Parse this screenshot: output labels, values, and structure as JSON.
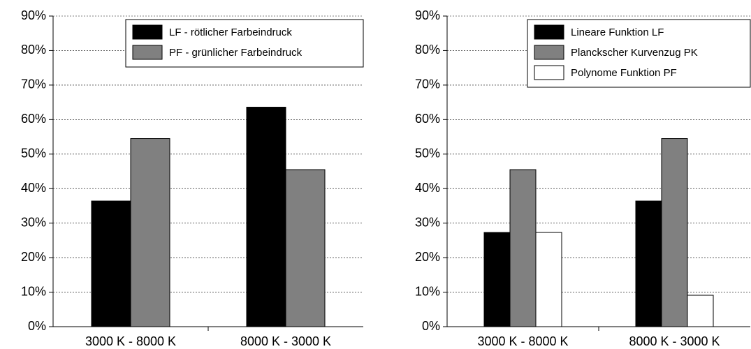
{
  "chart_data": [
    {
      "type": "bar",
      "categories": [
        "3000 K - 8000 K",
        "8000 K - 3000 K"
      ],
      "series": [
        {
          "name": "LF - rötlicher Farbeindruck",
          "color": "#000000",
          "values": [
            36.4,
            63.6
          ]
        },
        {
          "name": "PF - grünlicher Farbeindruck",
          "color": "#808080",
          "values": [
            54.5,
            45.5
          ]
        }
      ],
      "ylim": [
        0,
        90
      ],
      "yticks": [
        {
          "value": 0,
          "label": "0%"
        },
        {
          "value": 10,
          "label": "10%"
        },
        {
          "value": 20,
          "label": "20%"
        },
        {
          "value": 30,
          "label": "30%"
        },
        {
          "value": 40,
          "label": "40%"
        },
        {
          "value": 50,
          "label": "50%"
        },
        {
          "value": 60,
          "label": "60%"
        },
        {
          "value": 70,
          "label": "70%"
        },
        {
          "value": 80,
          "label": "80%"
        },
        {
          "value": 90,
          "label": "90%"
        }
      ],
      "grid": true,
      "legend": "top-right"
    },
    {
      "type": "bar",
      "categories": [
        "3000 K - 8000 K",
        "8000 K - 3000 K"
      ],
      "series": [
        {
          "name": "Lineare Funktion LF",
          "color": "#000000",
          "values": [
            27.3,
            36.4
          ]
        },
        {
          "name": "Planckscher Kurvenzug PK",
          "color": "#808080",
          "values": [
            45.5,
            54.5
          ]
        },
        {
          "name": "Polynome Funktion PF",
          "color": "#ffffff",
          "values": [
            27.3,
            9.1
          ]
        }
      ],
      "ylim": [
        0,
        90
      ],
      "yticks": [
        {
          "value": 0,
          "label": "0%"
        },
        {
          "value": 10,
          "label": "10%"
        },
        {
          "value": 20,
          "label": "20%"
        },
        {
          "value": 30,
          "label": "30%"
        },
        {
          "value": 40,
          "label": "40%"
        },
        {
          "value": 50,
          "label": "50%"
        },
        {
          "value": 60,
          "label": "60%"
        },
        {
          "value": 70,
          "label": "70%"
        },
        {
          "value": 80,
          "label": "80%"
        },
        {
          "value": 90,
          "label": "90%"
        }
      ],
      "grid": true,
      "legend": "top-right"
    }
  ]
}
